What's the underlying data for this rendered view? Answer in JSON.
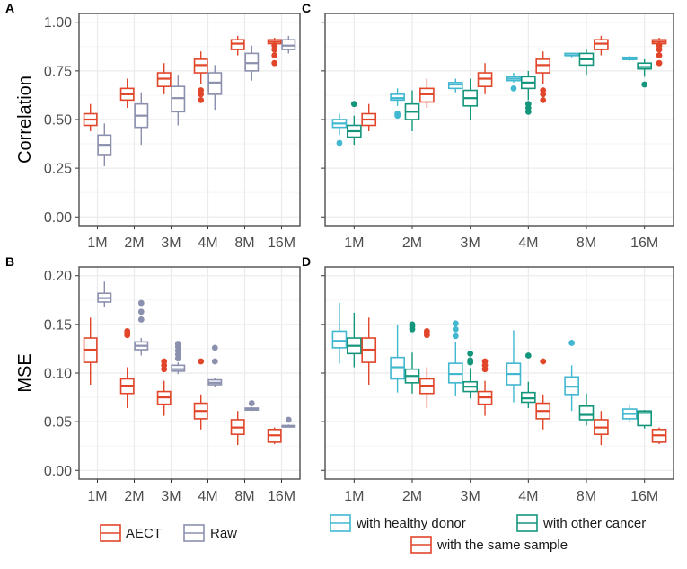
{
  "colors": {
    "AECT": "#e1462a",
    "Raw": "#8a90ad",
    "healthy": "#41b7d0",
    "other": "#14967c",
    "same": "#e1462a",
    "grid": "#ebebeb",
    "border": "#4d4d4d"
  },
  "legend_left": {
    "items": [
      "AECT",
      "Raw"
    ]
  },
  "legend_right": {
    "items": [
      "with healthy donor",
      "with other cancer",
      "with the same sample"
    ]
  },
  "chart_data": [
    {
      "panel": "A",
      "type": "box",
      "ylabel": "Correlation",
      "ylim": [
        0.0,
        1.0
      ],
      "yticks": [
        "0.00",
        "0.25",
        "0.50",
        "0.75",
        "1.00"
      ],
      "categories": [
        "1M",
        "2M",
        "3M",
        "4M",
        "8M",
        "16M"
      ],
      "series": [
        {
          "name": "AECT",
          "color_key": "AECT",
          "boxes": [
            {
              "lo": 0.44,
              "q1": 0.47,
              "med": 0.5,
              "q3": 0.53,
              "hi": 0.58,
              "out": []
            },
            {
              "lo": 0.56,
              "q1": 0.6,
              "med": 0.63,
              "q3": 0.66,
              "hi": 0.71,
              "out": []
            },
            {
              "lo": 0.63,
              "q1": 0.67,
              "med": 0.71,
              "q3": 0.74,
              "hi": 0.79,
              "out": []
            },
            {
              "lo": 0.68,
              "q1": 0.74,
              "med": 0.78,
              "q3": 0.81,
              "hi": 0.85,
              "out": [
                0.6,
                0.63,
                0.65
              ]
            },
            {
              "lo": 0.83,
              "q1": 0.86,
              "med": 0.89,
              "q3": 0.91,
              "hi": 0.93,
              "out": []
            },
            {
              "lo": 0.86,
              "q1": 0.89,
              "med": 0.9,
              "q3": 0.91,
              "hi": 0.92,
              "out": [
                0.79,
                0.83,
                0.86,
                0.88
              ]
            }
          ]
        },
        {
          "name": "Raw",
          "color_key": "Raw",
          "boxes": [
            {
              "lo": 0.26,
              "q1": 0.32,
              "med": 0.37,
              "q3": 0.42,
              "hi": 0.48,
              "out": []
            },
            {
              "lo": 0.37,
              "q1": 0.46,
              "med": 0.52,
              "q3": 0.58,
              "hi": 0.64,
              "out": []
            },
            {
              "lo": 0.47,
              "q1": 0.54,
              "med": 0.61,
              "q3": 0.67,
              "hi": 0.73,
              "out": []
            },
            {
              "lo": 0.55,
              "q1": 0.63,
              "med": 0.69,
              "q3": 0.74,
              "hi": 0.78,
              "out": []
            },
            {
              "lo": 0.7,
              "q1": 0.75,
              "med": 0.79,
              "q3": 0.84,
              "hi": 0.88,
              "out": []
            },
            {
              "lo": 0.84,
              "q1": 0.86,
              "med": 0.88,
              "q3": 0.91,
              "hi": 0.93,
              "out": []
            }
          ]
        }
      ]
    },
    {
      "panel": "B",
      "type": "box",
      "ylabel": "MSE",
      "ylim": [
        0.0,
        0.2
      ],
      "yticks": [
        "0.00",
        "0.05",
        "0.10",
        "0.15",
        "0.20"
      ],
      "categories": [
        "1M",
        "2M",
        "3M",
        "4M",
        "8M",
        "16M"
      ],
      "series": [
        {
          "name": "AECT",
          "color_key": "AECT",
          "boxes": [
            {
              "lo": 0.088,
              "q1": 0.111,
              "med": 0.124,
              "q3": 0.136,
              "hi": 0.157,
              "out": []
            },
            {
              "lo": 0.064,
              "q1": 0.079,
              "med": 0.087,
              "q3": 0.094,
              "hi": 0.106,
              "out": [
                0.139,
                0.141,
                0.143
              ]
            },
            {
              "lo": 0.056,
              "q1": 0.068,
              "med": 0.075,
              "q3": 0.081,
              "hi": 0.092,
              "out": [
                0.104,
                0.108,
                0.112
              ]
            },
            {
              "lo": 0.042,
              "q1": 0.053,
              "med": 0.061,
              "q3": 0.069,
              "hi": 0.078,
              "out": [
                0.112
              ]
            },
            {
              "lo": 0.026,
              "q1": 0.037,
              "med": 0.044,
              "q3": 0.052,
              "hi": 0.061,
              "out": []
            },
            {
              "lo": 0.027,
              "q1": 0.029,
              "med": 0.036,
              "q3": 0.042,
              "hi": 0.044,
              "out": []
            }
          ]
        },
        {
          "name": "Raw",
          "color_key": "Raw",
          "boxes": [
            {
              "lo": 0.168,
              "q1": 0.173,
              "med": 0.177,
              "q3": 0.182,
              "hi": 0.194,
              "out": []
            },
            {
              "lo": 0.118,
              "q1": 0.124,
              "med": 0.128,
              "q3": 0.132,
              "hi": 0.136,
              "out": [
                0.155,
                0.163,
                0.172
              ]
            },
            {
              "lo": 0.099,
              "q1": 0.102,
              "med": 0.104,
              "q3": 0.108,
              "hi": 0.111,
              "out": [
                0.115,
                0.119,
                0.123,
                0.127,
                0.13
              ]
            },
            {
              "lo": 0.086,
              "q1": 0.088,
              "med": 0.09,
              "q3": 0.093,
              "hi": 0.095,
              "out": [
                0.112,
                0.126
              ]
            },
            {
              "lo": 0.061,
              "q1": 0.062,
              "med": 0.063,
              "q3": 0.064,
              "hi": 0.065,
              "out": [
                0.069
              ]
            },
            {
              "lo": 0.044,
              "q1": 0.045,
              "med": 0.045,
              "q3": 0.046,
              "hi": 0.047,
              "out": [
                0.052
              ]
            }
          ]
        }
      ]
    },
    {
      "panel": "C",
      "type": "box",
      "ylabel": "",
      "ylim": [
        0.0,
        1.0
      ],
      "yticks": [
        "0.00",
        "0.25",
        "0.50",
        "0.75",
        "1.00"
      ],
      "categories": [
        "1M",
        "2M",
        "3M",
        "4M",
        "8M",
        "16M"
      ],
      "series": [
        {
          "name": "with healthy donor",
          "color_key": "healthy",
          "boxes": [
            {
              "lo": 0.42,
              "q1": 0.46,
              "med": 0.48,
              "q3": 0.5,
              "hi": 0.53,
              "out": [
                0.38
              ]
            },
            {
              "lo": 0.57,
              "q1": 0.6,
              "med": 0.61,
              "q3": 0.63,
              "hi": 0.66,
              "out": [
                0.52,
                0.53
              ]
            },
            {
              "lo": 0.64,
              "q1": 0.66,
              "med": 0.68,
              "q3": 0.69,
              "hi": 0.71,
              "out": []
            },
            {
              "lo": 0.69,
              "q1": 0.7,
              "med": 0.71,
              "q3": 0.72,
              "hi": 0.74,
              "out": [
                0.66
              ]
            },
            {
              "lo": 0.82,
              "q1": 0.83,
              "med": 0.83,
              "q3": 0.84,
              "hi": 0.84,
              "out": []
            },
            {
              "lo": 0.8,
              "q1": 0.81,
              "med": 0.81,
              "q3": 0.82,
              "hi": 0.83,
              "out": []
            }
          ]
        },
        {
          "name": "with other cancer",
          "color_key": "other",
          "boxes": [
            {
              "lo": 0.37,
              "q1": 0.41,
              "med": 0.44,
              "q3": 0.47,
              "hi": 0.52,
              "out": [
                0.58
              ]
            },
            {
              "lo": 0.44,
              "q1": 0.5,
              "med": 0.54,
              "q3": 0.58,
              "hi": 0.65,
              "out": []
            },
            {
              "lo": 0.5,
              "q1": 0.57,
              "med": 0.61,
              "q3": 0.65,
              "hi": 0.71,
              "out": []
            },
            {
              "lo": 0.6,
              "q1": 0.66,
              "med": 0.69,
              "q3": 0.72,
              "hi": 0.75,
              "out": [
                0.54,
                0.56,
                0.58
              ]
            },
            {
              "lo": 0.73,
              "q1": 0.78,
              "med": 0.81,
              "q3": 0.84,
              "hi": 0.86,
              "out": []
            },
            {
              "lo": 0.72,
              "q1": 0.76,
              "med": 0.77,
              "q3": 0.79,
              "hi": 0.81,
              "out": [
                0.68
              ]
            }
          ]
        },
        {
          "name": "with the same sample",
          "color_key": "same",
          "boxes": [
            {
              "lo": 0.44,
              "q1": 0.47,
              "med": 0.5,
              "q3": 0.53,
              "hi": 0.58,
              "out": []
            },
            {
              "lo": 0.56,
              "q1": 0.59,
              "med": 0.63,
              "q3": 0.66,
              "hi": 0.71,
              "out": []
            },
            {
              "lo": 0.63,
              "q1": 0.67,
              "med": 0.71,
              "q3": 0.74,
              "hi": 0.79,
              "out": []
            },
            {
              "lo": 0.68,
              "q1": 0.74,
              "med": 0.78,
              "q3": 0.81,
              "hi": 0.85,
              "out": [
                0.6,
                0.63,
                0.65
              ]
            },
            {
              "lo": 0.83,
              "q1": 0.86,
              "med": 0.89,
              "q3": 0.91,
              "hi": 0.93,
              "out": []
            },
            {
              "lo": 0.86,
              "q1": 0.89,
              "med": 0.9,
              "q3": 0.91,
              "hi": 0.92,
              "out": [
                0.79,
                0.83,
                0.86,
                0.88
              ]
            }
          ]
        }
      ]
    },
    {
      "panel": "D",
      "type": "box",
      "ylabel": "",
      "ylim": [
        0.0,
        0.2
      ],
      "yticks": [
        "0.00",
        "0.05",
        "0.10",
        "0.15",
        "0.20"
      ],
      "categories": [
        "1M",
        "2M",
        "3M",
        "4M",
        "8M",
        "16M"
      ],
      "series": [
        {
          "name": "with healthy donor",
          "color_key": "healthy",
          "boxes": [
            {
              "lo": 0.11,
              "q1": 0.126,
              "med": 0.133,
              "q3": 0.143,
              "hi": 0.172,
              "out": []
            },
            {
              "lo": 0.08,
              "q1": 0.094,
              "med": 0.106,
              "q3": 0.116,
              "hi": 0.149,
              "out": []
            },
            {
              "lo": 0.077,
              "q1": 0.09,
              "med": 0.099,
              "q3": 0.11,
              "hi": 0.132,
              "out": [
                0.138,
                0.145,
                0.151
              ]
            },
            {
              "lo": 0.07,
              "q1": 0.088,
              "med": 0.099,
              "q3": 0.11,
              "hi": 0.144,
              "out": []
            },
            {
              "lo": 0.061,
              "q1": 0.078,
              "med": 0.086,
              "q3": 0.096,
              "hi": 0.108,
              "out": [
                0.131
              ]
            },
            {
              "lo": 0.049,
              "q1": 0.053,
              "med": 0.058,
              "q3": 0.063,
              "hi": 0.068,
              "out": []
            }
          ]
        },
        {
          "name": "with other cancer",
          "color_key": "other",
          "boxes": [
            {
              "lo": 0.106,
              "q1": 0.12,
              "med": 0.128,
              "q3": 0.136,
              "hi": 0.162,
              "out": []
            },
            {
              "lo": 0.079,
              "q1": 0.09,
              "med": 0.097,
              "q3": 0.104,
              "hi": 0.121,
              "out": [
                0.145,
                0.148,
                0.15
              ]
            },
            {
              "lo": 0.074,
              "q1": 0.081,
              "med": 0.086,
              "q3": 0.091,
              "hi": 0.105,
              "out": [
                0.111,
                0.113,
                0.12
              ]
            },
            {
              "lo": 0.064,
              "q1": 0.07,
              "med": 0.074,
              "q3": 0.08,
              "hi": 0.091,
              "out": [
                0.118
              ]
            },
            {
              "lo": 0.046,
              "q1": 0.052,
              "med": 0.057,
              "q3": 0.066,
              "hi": 0.079,
              "out": []
            },
            {
              "lo": 0.043,
              "q1": 0.046,
              "med": 0.059,
              "q3": 0.061,
              "hi": 0.062,
              "out": []
            }
          ]
        },
        {
          "name": "with the same sample",
          "color_key": "same",
          "boxes": [
            {
              "lo": 0.088,
              "q1": 0.111,
              "med": 0.124,
              "q3": 0.136,
              "hi": 0.157,
              "out": []
            },
            {
              "lo": 0.064,
              "q1": 0.079,
              "med": 0.087,
              "q3": 0.094,
              "hi": 0.106,
              "out": [
                0.139,
                0.141,
                0.143
              ]
            },
            {
              "lo": 0.056,
              "q1": 0.068,
              "med": 0.075,
              "q3": 0.081,
              "hi": 0.092,
              "out": [
                0.104,
                0.108,
                0.112
              ]
            },
            {
              "lo": 0.042,
              "q1": 0.053,
              "med": 0.061,
              "q3": 0.069,
              "hi": 0.078,
              "out": [
                0.112
              ]
            },
            {
              "lo": 0.026,
              "q1": 0.037,
              "med": 0.044,
              "q3": 0.052,
              "hi": 0.061,
              "out": []
            },
            {
              "lo": 0.027,
              "q1": 0.029,
              "med": 0.036,
              "q3": 0.042,
              "hi": 0.044,
              "out": []
            }
          ]
        }
      ]
    }
  ]
}
